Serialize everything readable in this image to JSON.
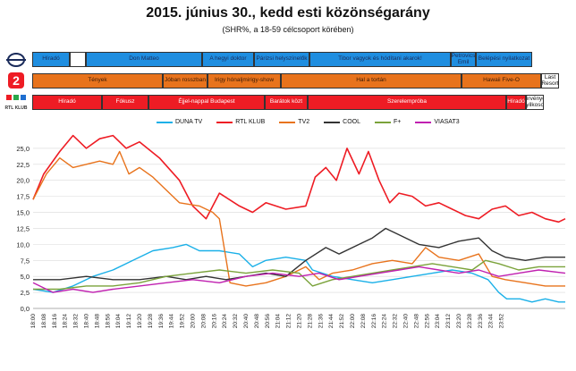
{
  "header": {
    "title": "2015. június 30., kedd esti közönségarány",
    "subtitle": "(SHR%, a 18-59 célcsoport körében)"
  },
  "colors": {
    "duna": "#1ab0e8",
    "rtl": "#ee1c24",
    "tv2": "#e8731c",
    "cool": "#333333",
    "fplus": "#7aa23a",
    "viasat3": "#c020b0"
  },
  "logos": [
    {
      "name": "duna-tv-logo",
      "text": ""
    },
    {
      "name": "tv2-logo",
      "text": "2"
    },
    {
      "name": "rtl-klub-logo",
      "text": "RTL KLUB"
    }
  ],
  "schedule": {
    "duna": [
      {
        "label": "Híradó",
        "color": "blue"
      },
      {
        "label": "",
        "color": "white"
      },
      {
        "label": "Don Matteo",
        "color": "blue"
      },
      {
        "label": "A hegyi doktor",
        "color": "blue"
      },
      {
        "label": "Párizsi helyszínelők",
        "color": "blue"
      },
      {
        "label": "Tibor vagyok és hódítani akarok!",
        "color": "blue"
      },
      {
        "label": "Petrovics Emil",
        "color": "blue"
      },
      {
        "label": "Belépési nyilatkozat",
        "color": "blue"
      }
    ],
    "tv2": [
      {
        "label": "Tények",
        "color": "orange"
      },
      {
        "label": "Jóban rosszban",
        "color": "orange"
      },
      {
        "label": "Irigy hónaljmirigy-show",
        "color": "orange"
      },
      {
        "label": "Hal a tortán",
        "color": "orange"
      },
      {
        "label": "Hawaii Five-O",
        "color": "orange"
      },
      {
        "label": "Last Resort",
        "color": "white"
      }
    ],
    "rtl": [
      {
        "label": "Híradó",
        "color": "red"
      },
      {
        "label": "Fókusz",
        "color": "red"
      },
      {
        "label": "Éjjel-nappal Budapest",
        "color": "red"
      },
      {
        "label": "Barátok közt",
        "color": "red"
      },
      {
        "label": "Szerelempróba",
        "color": "red"
      },
      {
        "label": "Híradó",
        "color": "red"
      },
      {
        "label": "Törvényes gyilkosok",
        "color": "white"
      }
    ]
  },
  "chart_data": {
    "type": "line",
    "ylim": [
      0,
      27.5
    ],
    "yticks": [
      "0,0",
      "2,5",
      "5,0",
      "7,5",
      "10,0",
      "12,5",
      "15,0",
      "17,5",
      "20,0",
      "22,5",
      "25,0"
    ],
    "xticks": [
      "18:00",
      "18:08",
      "18:16",
      "18:24",
      "18:32",
      "18:40",
      "18:48",
      "18:56",
      "19:04",
      "19:12",
      "19:20",
      "19:28",
      "19:36",
      "19:44",
      "19:52",
      "20:00",
      "20:08",
      "20:16",
      "20:24",
      "20:32",
      "20:40",
      "20:48",
      "20:56",
      "21:04",
      "21:12",
      "21:20",
      "21:28",
      "21:36",
      "21:44",
      "21:52",
      "22:00",
      "22:08",
      "22:16",
      "22:24",
      "22:32",
      "22:40",
      "22:48",
      "22:56",
      "23:04",
      "23:12",
      "23:20",
      "23:28",
      "23:36",
      "23:44",
      "23:52"
    ],
    "x_start": "18:00",
    "x_end": "23:59",
    "series": [
      {
        "name": "DUNA TV",
        "key": "duna",
        "points": [
          [
            0,
            3.0
          ],
          [
            15,
            2.5
          ],
          [
            30,
            3.5
          ],
          [
            45,
            5.0
          ],
          [
            60,
            6.0
          ],
          [
            75,
            7.5
          ],
          [
            90,
            9.0
          ],
          [
            105,
            9.5
          ],
          [
            115,
            10.0
          ],
          [
            125,
            9.0
          ],
          [
            140,
            9.0
          ],
          [
            155,
            8.5
          ],
          [
            165,
            6.5
          ],
          [
            175,
            7.5
          ],
          [
            190,
            8.0
          ],
          [
            205,
            7.5
          ],
          [
            210,
            6.0
          ],
          [
            225,
            5.0
          ],
          [
            240,
            4.5
          ],
          [
            255,
            4.0
          ],
          [
            270,
            4.5
          ],
          [
            285,
            5.0
          ],
          [
            300,
            5.5
          ],
          [
            315,
            6.0
          ],
          [
            330,
            5.5
          ],
          [
            342,
            4.5
          ],
          [
            350,
            2.5
          ],
          [
            356,
            1.5
          ],
          [
            366,
            1.5
          ],
          [
            375,
            1.0
          ],
          [
            385,
            1.5
          ],
          [
            395,
            1.0
          ],
          [
            400,
            1.0
          ]
        ]
      },
      {
        "name": "RTL KLUB",
        "key": "rtl",
        "points": [
          [
            0,
            17.0
          ],
          [
            8,
            21.0
          ],
          [
            20,
            24.5
          ],
          [
            30,
            27.0
          ],
          [
            40,
            25.0
          ],
          [
            50,
            26.5
          ],
          [
            60,
            27.0
          ],
          [
            70,
            25.0
          ],
          [
            80,
            26.0
          ],
          [
            95,
            23.5
          ],
          [
            110,
            20.0
          ],
          [
            120,
            16.0
          ],
          [
            130,
            14.0
          ],
          [
            140,
            18.0
          ],
          [
            155,
            16.0
          ],
          [
            165,
            15.0
          ],
          [
            175,
            16.5
          ],
          [
            190,
            15.5
          ],
          [
            205,
            16.0
          ],
          [
            212,
            20.5
          ],
          [
            220,
            22.0
          ],
          [
            228,
            20.0
          ],
          [
            236,
            25.0
          ],
          [
            245,
            21.0
          ],
          [
            252,
            24.5
          ],
          [
            260,
            20.0
          ],
          [
            268,
            16.5
          ],
          [
            275,
            18.0
          ],
          [
            285,
            17.5
          ],
          [
            295,
            16.0
          ],
          [
            305,
            16.5
          ],
          [
            315,
            15.5
          ],
          [
            325,
            14.5
          ],
          [
            335,
            14.0
          ],
          [
            345,
            15.5
          ],
          [
            355,
            16.0
          ],
          [
            365,
            14.5
          ],
          [
            375,
            15.0
          ],
          [
            385,
            14.0
          ],
          [
            395,
            13.5
          ],
          [
            400,
            14.0
          ]
        ]
      },
      {
        "name": "TV2",
        "key": "tv2",
        "points": [
          [
            0,
            17.0
          ],
          [
            10,
            21.0
          ],
          [
            20,
            23.5
          ],
          [
            30,
            22.0
          ],
          [
            40,
            22.5
          ],
          [
            50,
            23.0
          ],
          [
            60,
            22.5
          ],
          [
            65,
            24.5
          ],
          [
            72,
            21.0
          ],
          [
            80,
            22.0
          ],
          [
            90,
            20.5
          ],
          [
            100,
            18.5
          ],
          [
            110,
            16.5
          ],
          [
            125,
            16.0
          ],
          [
            135,
            15.0
          ],
          [
            140,
            14.0
          ],
          [
            148,
            4.0
          ],
          [
            160,
            3.5
          ],
          [
            175,
            4.0
          ],
          [
            190,
            5.0
          ],
          [
            205,
            6.5
          ],
          [
            215,
            4.5
          ],
          [
            225,
            5.5
          ],
          [
            240,
            6.0
          ],
          [
            255,
            7.0
          ],
          [
            270,
            7.5
          ],
          [
            285,
            7.0
          ],
          [
            295,
            9.5
          ],
          [
            305,
            8.0
          ],
          [
            320,
            7.5
          ],
          [
            335,
            8.5
          ],
          [
            345,
            5.0
          ],
          [
            355,
            4.5
          ],
          [
            370,
            4.0
          ],
          [
            385,
            3.5
          ],
          [
            400,
            3.5
          ]
        ]
      },
      {
        "name": "COOL",
        "key": "cool",
        "points": [
          [
            0,
            4.5
          ],
          [
            20,
            4.5
          ],
          [
            40,
            5.0
          ],
          [
            60,
            4.5
          ],
          [
            80,
            4.5
          ],
          [
            100,
            5.0
          ],
          [
            115,
            4.5
          ],
          [
            130,
            5.0
          ],
          [
            145,
            4.5
          ],
          [
            160,
            5.0
          ],
          [
            175,
            5.5
          ],
          [
            190,
            5.0
          ],
          [
            205,
            7.5
          ],
          [
            220,
            9.5
          ],
          [
            230,
            8.5
          ],
          [
            245,
            10.0
          ],
          [
            255,
            11.0
          ],
          [
            265,
            12.5
          ],
          [
            275,
            11.5
          ],
          [
            290,
            10.0
          ],
          [
            305,
            9.5
          ],
          [
            320,
            10.5
          ],
          [
            335,
            11.0
          ],
          [
            345,
            9.0
          ],
          [
            355,
            8.0
          ],
          [
            370,
            7.5
          ],
          [
            385,
            8.0
          ],
          [
            400,
            8.0
          ]
        ]
      },
      {
        "name": "F+",
        "key": "fplus",
        "points": [
          [
            0,
            3.0
          ],
          [
            20,
            3.0
          ],
          [
            40,
            3.5
          ],
          [
            60,
            3.5
          ],
          [
            80,
            4.0
          ],
          [
            100,
            5.0
          ],
          [
            120,
            5.5
          ],
          [
            140,
            6.0
          ],
          [
            160,
            5.5
          ],
          [
            180,
            6.0
          ],
          [
            200,
            5.5
          ],
          [
            210,
            3.5
          ],
          [
            225,
            4.5
          ],
          [
            240,
            5.0
          ],
          [
            255,
            5.5
          ],
          [
            270,
            6.0
          ],
          [
            285,
            6.5
          ],
          [
            300,
            7.0
          ],
          [
            315,
            6.5
          ],
          [
            330,
            6.0
          ],
          [
            340,
            7.5
          ],
          [
            350,
            7.0
          ],
          [
            365,
            6.0
          ],
          [
            380,
            6.5
          ],
          [
            400,
            6.5
          ]
        ]
      },
      {
        "name": "VIASAT3",
        "key": "viasat3",
        "points": [
          [
            0,
            4.0
          ],
          [
            15,
            2.5
          ],
          [
            30,
            3.0
          ],
          [
            45,
            2.5
          ],
          [
            60,
            3.0
          ],
          [
            80,
            3.5
          ],
          [
            100,
            4.0
          ],
          [
            120,
            4.5
          ],
          [
            140,
            4.0
          ],
          [
            160,
            5.0
          ],
          [
            180,
            5.5
          ],
          [
            200,
            5.0
          ],
          [
            215,
            5.5
          ],
          [
            230,
            4.5
          ],
          [
            245,
            5.0
          ],
          [
            260,
            5.5
          ],
          [
            275,
            6.0
          ],
          [
            290,
            6.5
          ],
          [
            305,
            6.0
          ],
          [
            320,
            5.5
          ],
          [
            335,
            6.0
          ],
          [
            350,
            5.0
          ],
          [
            365,
            5.5
          ],
          [
            380,
            6.0
          ],
          [
            400,
            5.5
          ]
        ]
      }
    ]
  }
}
